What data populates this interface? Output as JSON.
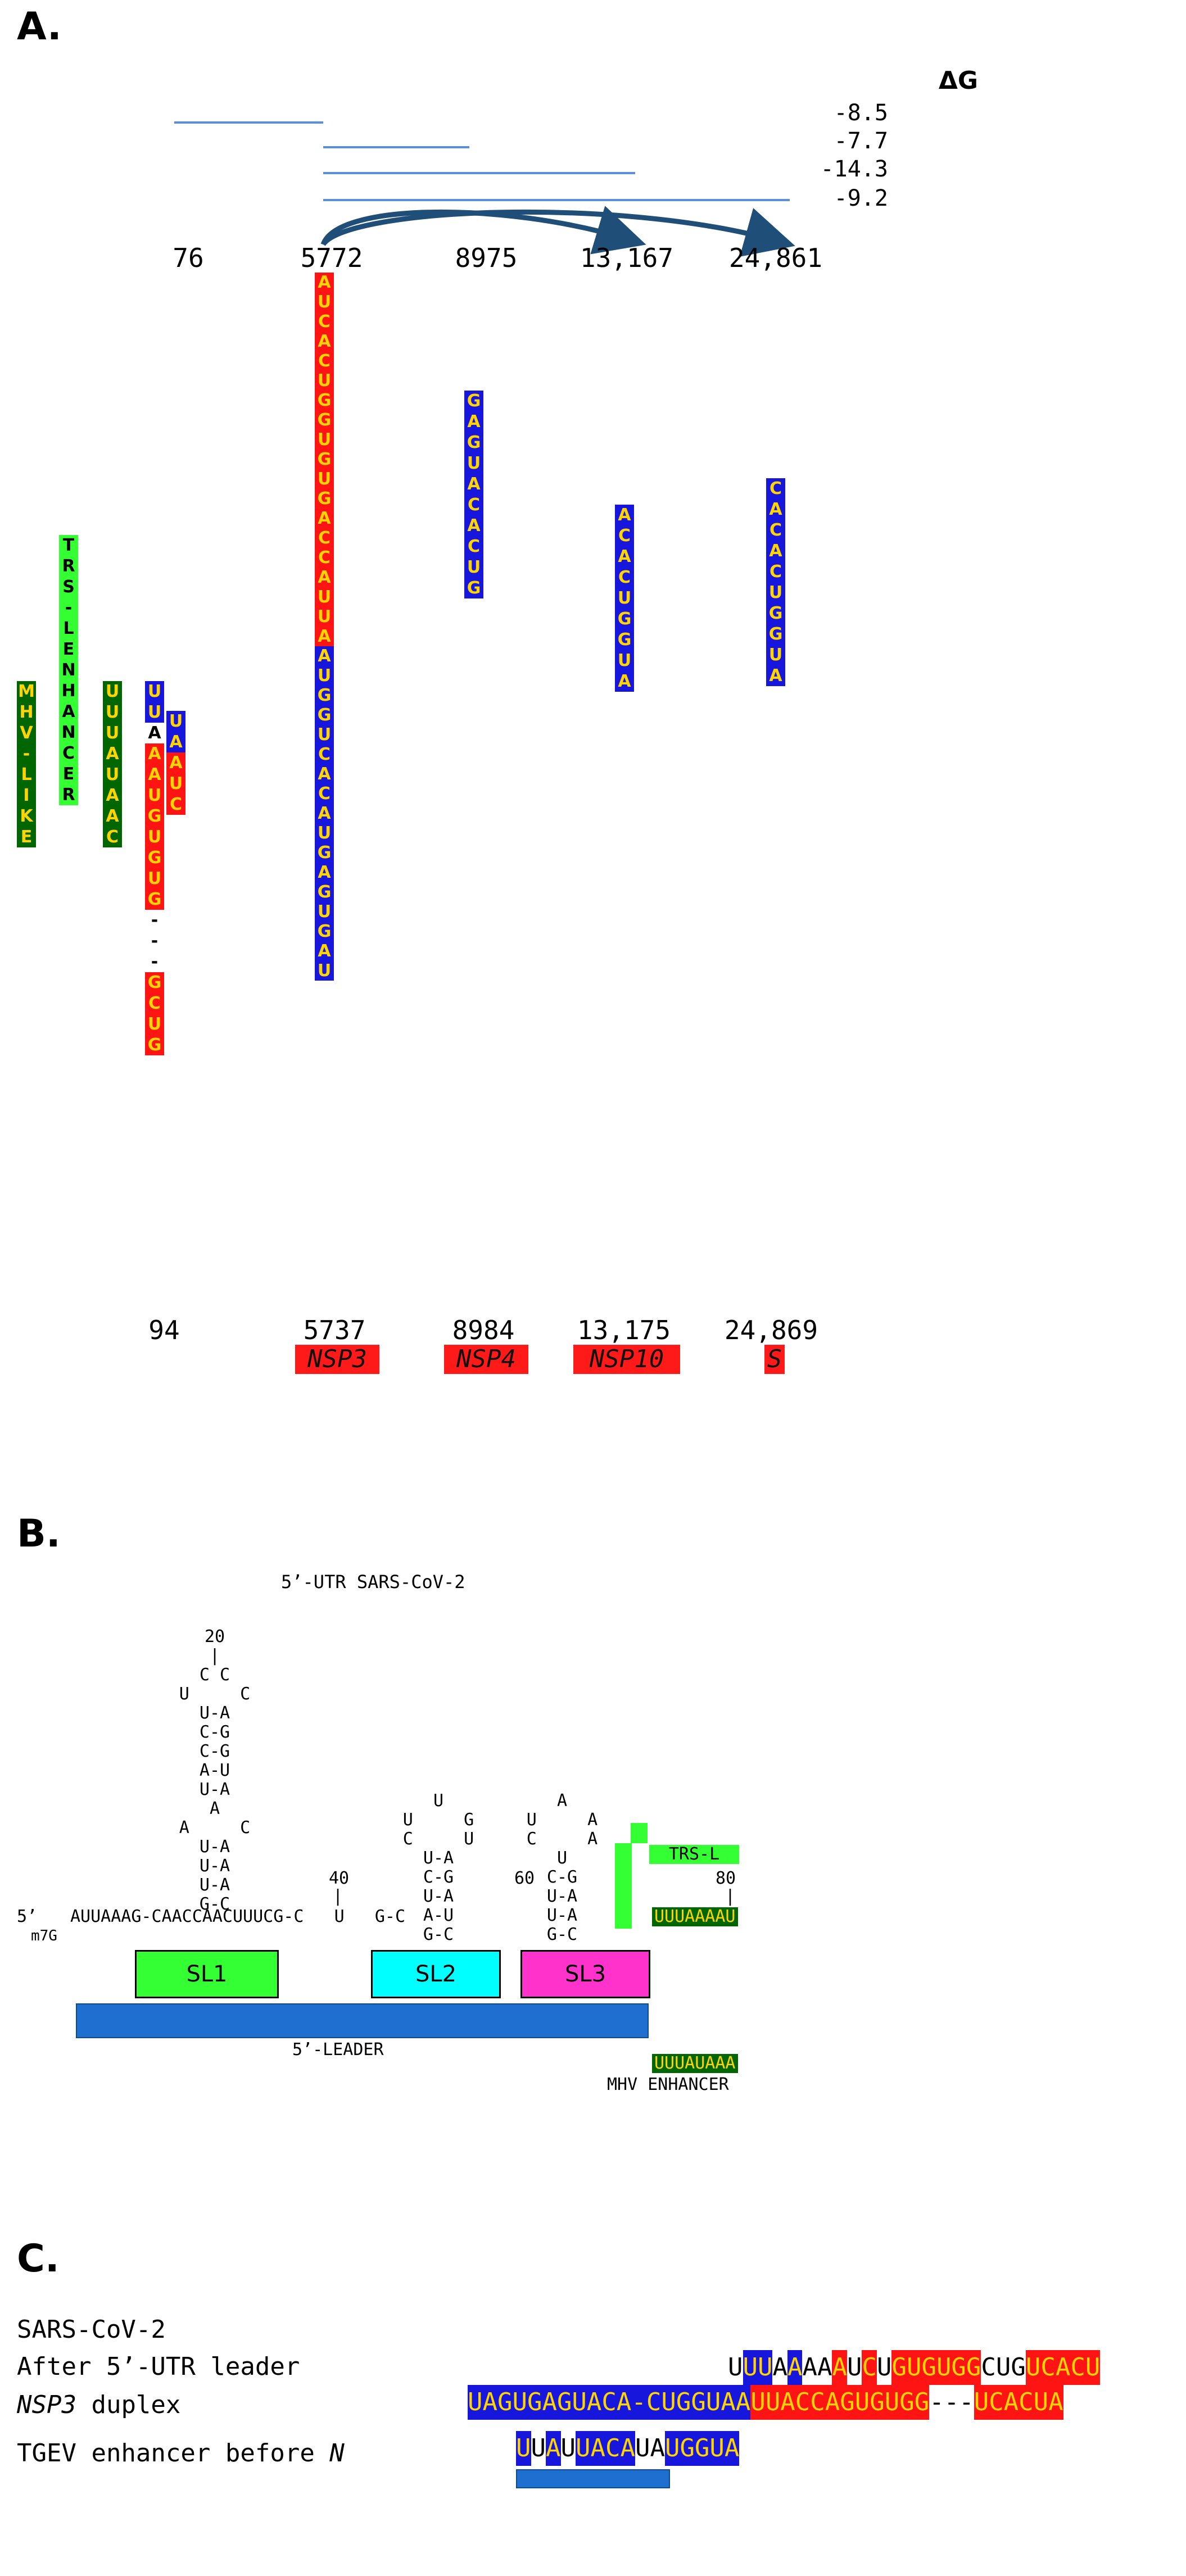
{
  "panel_a": {
    "label": "A.",
    "dg_header": "ΔG",
    "dg_values": [
      "-8.5",
      "-7.7",
      "-14.3",
      "-9.2"
    ],
    "top_positions": [
      "76",
      "5772",
      "8975",
      "13,167",
      "24,861"
    ],
    "bottom_positions": [
      "94",
      "5737",
      "8984",
      "13,175",
      "24,869"
    ],
    "genes": [
      "NSP3",
      "NSP4",
      "NSP10",
      "S"
    ],
    "columns": {
      "mhv_like": [
        "M",
        "H",
        "V",
        "-",
        "L",
        "I",
        "K",
        "E"
      ],
      "trs_l_enhancer": [
        "T",
        "R",
        "S",
        "-",
        "L",
        "E",
        "N",
        "H",
        "A",
        "N",
        "C",
        "E",
        "R"
      ],
      "uuuauaac": [
        "U",
        "U",
        "U",
        "A",
        "U",
        "A",
        "A",
        "C"
      ],
      "leader_left": [
        "U",
        "U",
        "A",
        "A",
        "A",
        "U",
        "G",
        "U",
        "G",
        "U",
        "G",
        "-",
        "-",
        "-",
        "G",
        "C",
        "U",
        "G"
      ],
      "leader_right": [
        "U",
        "A",
        "A",
        "U",
        "C"
      ],
      "nsp3": [
        "A",
        "U",
        "C",
        "A",
        "C",
        "U",
        "G",
        "G",
        "U",
        "G",
        "U",
        "G",
        "A",
        "C",
        "C",
        "A",
        "U",
        "U",
        "A",
        "A",
        "U",
        "G",
        "G",
        "U",
        "C",
        "A",
        "C",
        "A",
        "U",
        "G",
        "A",
        "G",
        "U",
        "G",
        "A",
        "U"
      ],
      "nsp4": [
        "G",
        "A",
        "G",
        "U",
        "A",
        "C",
        "A",
        "C",
        "U",
        "G"
      ],
      "nsp10": [
        "A",
        "C",
        "A",
        "C",
        "U",
        "G",
        "G",
        "U",
        "A"
      ],
      "s": [
        "C",
        "A",
        "C",
        "A",
        "C",
        "U",
        "G",
        "G",
        "U",
        "A"
      ]
    },
    "colors": {
      "blue": "#1616dd",
      "red": "#ff1414",
      "dark_green": "#006600",
      "light_green": "#33ff33",
      "letter": "#ffd400",
      "line": "#5b8fd6",
      "arrow": "#1f4e79"
    }
  },
  "panel_b": {
    "label": "B.",
    "title": "5’-UTR SARS-CoV-2",
    "stem1": [
      "20",
      "|",
      "C C",
      "U     C",
      "U-A",
      "C-G",
      "C-G",
      "A-U",
      "U-A",
      "A",
      "A     C",
      "U-A",
      "U-A",
      "U-A",
      "G-C"
    ],
    "stem2": [
      "U",
      "U     G",
      "C     U",
      "U-A",
      "C-G",
      "U-A",
      "A-U",
      "G-C"
    ],
    "stem3": [
      "A",
      "U     A",
      "C     A",
      "U",
      "C-G",
      "U-A",
      "U-A",
      "G-C"
    ],
    "pos_40": "40",
    "pos_60": "60",
    "pos_80": "80",
    "five_prime": "5’",
    "cap": "m7G",
    "main_seq": "AUUAAAG-CAACCAACUUUCG-C   U   G-C",
    "trs_l": "TRS-L",
    "mhv_seq": "UUUAAAAU",
    "sl1": "SL1",
    "sl2": "SL2",
    "sl3": "SL3",
    "leader_label": "5’-LEADER",
    "enh_seq": "UUUAUAAA",
    "enh_label": "MHV ENHANCER"
  },
  "panel_c": {
    "label": "C.",
    "line1": "SARS-CoV-2",
    "line2": "After 5’-UTR leader",
    "line3_gene": "NSP3",
    "line3_rest": " duplex",
    "line4_pre": "TGEV enhancer before ",
    "line4_gene": "N",
    "row1": [
      {
        "t": "U",
        "c": "n"
      },
      {
        "t": "UU",
        "c": "b"
      },
      {
        "t": "A",
        "c": "n"
      },
      {
        "t": "A",
        "c": "b"
      },
      {
        "t": "AA",
        "c": "n"
      },
      {
        "t": "A",
        "c": "r"
      },
      {
        "t": "U",
        "c": "n"
      },
      {
        "t": "C",
        "c": "r"
      },
      {
        "t": "U",
        "c": "n"
      },
      {
        "t": "GUGUGG",
        "c": "r"
      },
      {
        "t": "CUG",
        "c": "n"
      },
      {
        "t": "UCACU",
        "c": "r"
      }
    ],
    "row2": [
      {
        "t": "UAGUGAGUACA-CUGGUAA",
        "c": "b"
      },
      {
        "t": "UUACCAGUGUGG",
        "c": "r"
      },
      {
        "t": "---",
        "c": "n"
      },
      {
        "t": "UCACUA",
        "c": "r"
      }
    ],
    "row3": [
      {
        "t": "U",
        "c": "b"
      },
      {
        "t": "U",
        "c": "n"
      },
      {
        "t": "A",
        "c": "b"
      },
      {
        "t": "U",
        "c": "n"
      },
      {
        "t": "UACA",
        "c": "b"
      },
      {
        "t": "UA",
        "c": "n"
      },
      {
        "t": "UGGUA",
        "c": "b"
      }
    ]
  }
}
